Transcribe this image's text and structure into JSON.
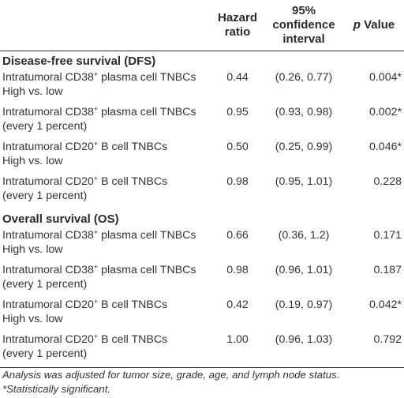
{
  "header": {
    "hr_line1": "Hazard",
    "hr_line2": "ratio",
    "ci_line1": "95% confidence",
    "ci_line2": "interval",
    "p_italic": "p",
    "p_rest": "Value"
  },
  "sections": [
    {
      "title": "Disease-free survival (DFS)",
      "rows": [
        {
          "label_pre": "Intratumoral CD38",
          "sup": "+",
          "label_post": " plasma cell TNBCs",
          "line2": "High vs. low",
          "hazard_ratio": "0.44",
          "ci": "(0.26, 0.77)",
          "p_value": "0.004*"
        },
        {
          "label_pre": "Intratumoral CD38",
          "sup": "+",
          "label_post": " plasma cell TNBCs",
          "line2": "(every 1 percent)",
          "hazard_ratio": "0.95",
          "ci": "(0.93, 0.98)",
          "p_value": "0.002*"
        },
        {
          "label_pre": "Intratumoral CD20",
          "sup": "+",
          "label_post": " B cell TNBCs",
          "line2": "High vs. low",
          "hazard_ratio": "0.50",
          "ci": "(0.25, 0.99)",
          "p_value": "0.046*"
        },
        {
          "label_pre": "Intratumoral CD20",
          "sup": "+",
          "label_post": " B cell TNBCs",
          "line2": "(every 1 percent)",
          "hazard_ratio": "0.98",
          "ci": "(0.95, 1.01)",
          "p_value": "0.228"
        }
      ]
    },
    {
      "title": "Overall survival (OS)",
      "rows": [
        {
          "label_pre": "Intratumoral CD38",
          "sup": "+",
          "label_post": " plasma cell TNBCs",
          "line2": "High vs. low",
          "hazard_ratio": "0.66",
          "ci": "(0.36, 1.2)",
          "p_value": "0.171"
        },
        {
          "label_pre": "Intratumoral CD38",
          "sup": "+",
          "label_post": " plasma cell TNBCs",
          "line2": "(every 1 percent)",
          "hazard_ratio": "0.98",
          "ci": "(0.96, 1.01)",
          "p_value": "0.187"
        },
        {
          "label_pre": "Intratumoral CD20",
          "sup": "+",
          "label_post": " B cell TNBCs",
          "line2": "High vs. low",
          "hazard_ratio": "0.42",
          "ci": "(0.19, 0.97)",
          "p_value": "0.042*"
        },
        {
          "label_pre": "Intratumoral CD20",
          "sup": "+",
          "label_post": " B cell TNBCs",
          "line2": "(every 1 percent)",
          "hazard_ratio": "1.00",
          "ci": "(0.96, 1.03)",
          "p_value": "0.792"
        }
      ]
    }
  ],
  "footnotes": [
    "Analysis was adjusted for tumor size, grade, age, and lymph node status.",
    "*Statistically significant."
  ]
}
